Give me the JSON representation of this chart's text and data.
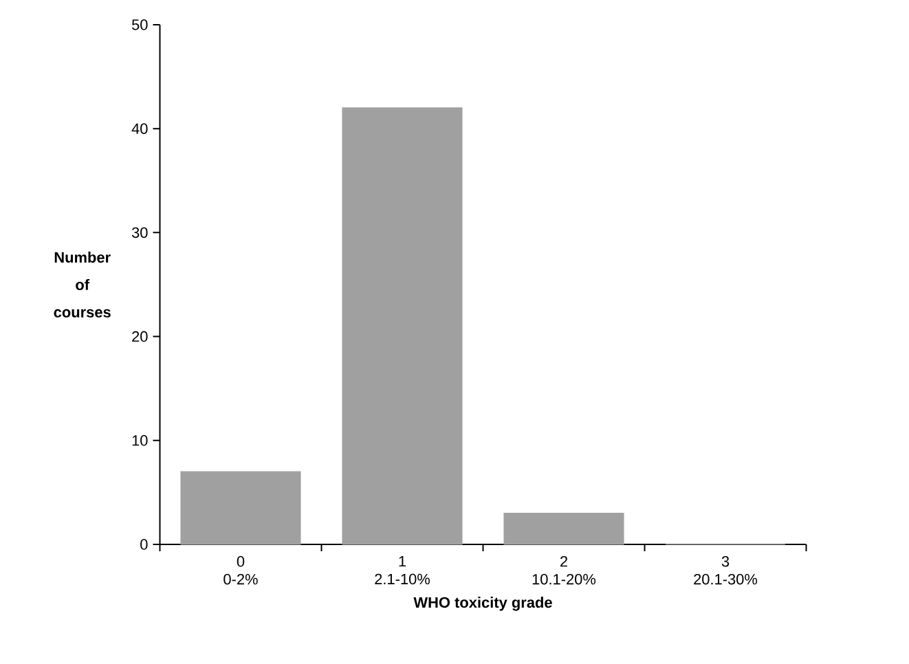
{
  "chart_data": {
    "type": "bar",
    "xlabel": "WHO toxicity grade",
    "ylabel": "Number of courses",
    "categories": [
      "0 0-2%",
      "1 2.1-10%",
      "2 10.1-20%",
      "3 20.1-30%"
    ],
    "values": [
      7,
      42,
      3,
      0
    ],
    "color": "#a0a0a0",
    "ylim": [
      0,
      50
    ],
    "yticks": [
      0,
      10,
      20,
      30,
      40,
      50
    ],
    "grid": false
  }
}
